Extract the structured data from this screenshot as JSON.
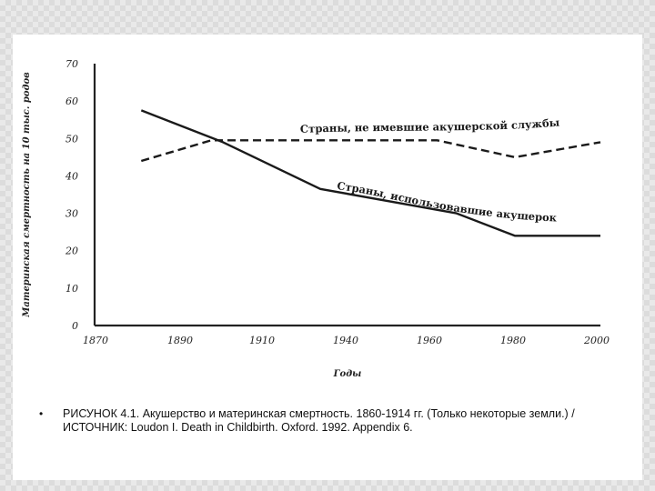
{
  "caption": {
    "bullet": "•",
    "text": "РИСУНОК 4.1. Акушерство и материнская смертность. 1860-1914 гг. (Только некоторые земли.) / ИСТОЧНИК: Loudon I. Death in Childbirth. Oxford. 1992. Appendix 6."
  },
  "chart_data": {
    "type": "line",
    "title": "",
    "xlabel": "Годы",
    "ylabel": "Материнская смертность на 10 тыс. родов",
    "xlim": [
      1870,
      2000
    ],
    "ylim": [
      0,
      70
    ],
    "xticks": [
      1870,
      1890,
      1910,
      1940,
      1960,
      1980,
      2000
    ],
    "xtick_labels": [
      "1870",
      "1890",
      "1910",
      "1940",
      "1960",
      "1980",
      "2000"
    ],
    "yticks": [
      0,
      10,
      20,
      30,
      40,
      50,
      60,
      70
    ],
    "grid": false,
    "series": [
      {
        "name": "Страны, не имевшие акушерской службы",
        "style": "dashed",
        "x": [
          1882,
          1900,
          1945,
          1958,
          1978,
          2000
        ],
        "y": [
          44,
          49.5,
          49.5,
          49.5,
          45,
          49
        ]
      },
      {
        "name": "Страны, использовавшие акушерок",
        "style": "solid",
        "x": [
          1882,
          1903,
          1928,
          1963,
          1978,
          2000
        ],
        "y": [
          57.5,
          49,
          36.5,
          30,
          24,
          24
        ]
      }
    ],
    "annotations": [
      "Страны, не имевшие акушерской службы",
      "Страны, использовавшие акушерок"
    ]
  }
}
